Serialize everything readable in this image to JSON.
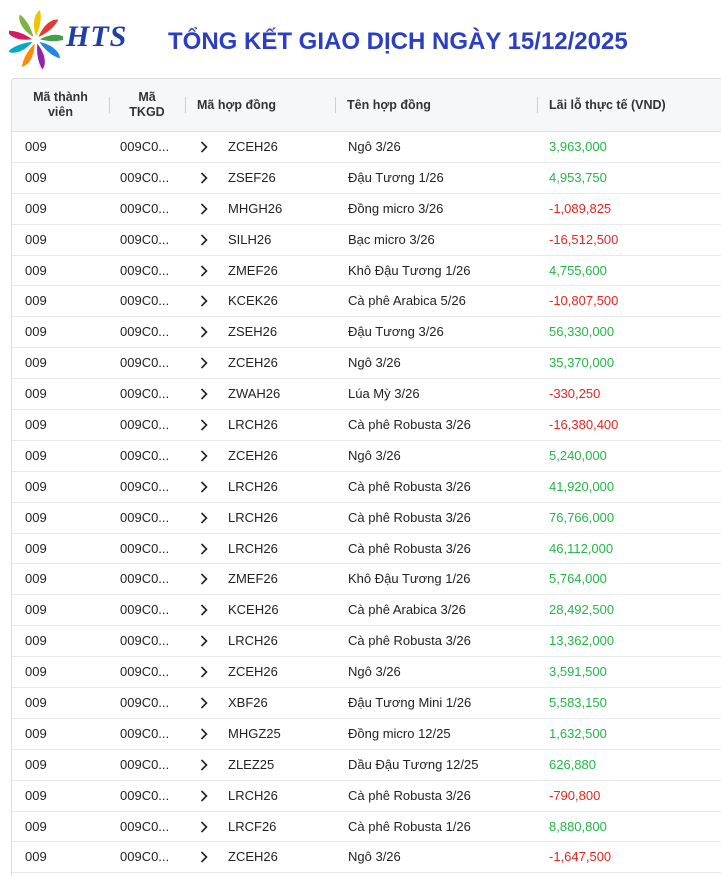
{
  "header": {
    "brand": "HTS",
    "title": "TỔNG KẾT GIAO DỊCH NGÀY 15/12/2025"
  },
  "colors": {
    "positive": "#22b845",
    "negative": "#e8251f",
    "title": "#2b3fc4"
  },
  "table": {
    "columns": {
      "member": "Mã thành viên",
      "account": "Mã TKGD",
      "contract_code": "Mã hợp đồng",
      "contract_name": "Tên hợp đồng",
      "pnl": "Lãi lỗ thực tế (VND)"
    },
    "rows": [
      {
        "member": "009",
        "account": "009C0...",
        "code": "ZCEH26",
        "name": "Ngô 3/26",
        "pnl": "3,963,000",
        "sign": "pos"
      },
      {
        "member": "009",
        "account": "009C0...",
        "code": "ZSEF26",
        "name": "Đậu Tương 1/26",
        "pnl": "4,953,750",
        "sign": "pos"
      },
      {
        "member": "009",
        "account": "009C0...",
        "code": "MHGH26",
        "name": "Đồng micro 3/26",
        "pnl": "-1,089,825",
        "sign": "neg"
      },
      {
        "member": "009",
        "account": "009C0...",
        "code": "SILH26",
        "name": "Bạc micro 3/26",
        "pnl": "-16,512,500",
        "sign": "neg"
      },
      {
        "member": "009",
        "account": "009C0...",
        "code": "ZMEF26",
        "name": "Khô Đậu Tương 1/26",
        "pnl": "4,755,600",
        "sign": "pos"
      },
      {
        "member": "009",
        "account": "009C0...",
        "code": "KCEK26",
        "name": "Cà phê Arabica 5/26",
        "pnl": "-10,807,500",
        "sign": "neg"
      },
      {
        "member": "009",
        "account": "009C0...",
        "code": "ZSEH26",
        "name": "Đậu Tương 3/26",
        "pnl": "56,330,000",
        "sign": "pos"
      },
      {
        "member": "009",
        "account": "009C0...",
        "code": "ZCEH26",
        "name": "Ngô 3/26",
        "pnl": "35,370,000",
        "sign": "pos"
      },
      {
        "member": "009",
        "account": "009C0...",
        "code": "ZWAH26",
        "name": "Lúa Mỳ 3/26",
        "pnl": "-330,250",
        "sign": "neg"
      },
      {
        "member": "009",
        "account": "009C0...",
        "code": "LRCH26",
        "name": "Cà phê Robusta 3/26",
        "pnl": "-16,380,400",
        "sign": "neg"
      },
      {
        "member": "009",
        "account": "009C0...",
        "code": "ZCEH26",
        "name": "Ngô 3/26",
        "pnl": "5,240,000",
        "sign": "pos"
      },
      {
        "member": "009",
        "account": "009C0...",
        "code": "LRCH26",
        "name": "Cà phê Robusta 3/26",
        "pnl": "41,920,000",
        "sign": "pos"
      },
      {
        "member": "009",
        "account": "009C0...",
        "code": "LRCH26",
        "name": "Cà phê Robusta 3/26",
        "pnl": "76,766,000",
        "sign": "pos"
      },
      {
        "member": "009",
        "account": "009C0...",
        "code": "LRCH26",
        "name": "Cà phê Robusta 3/26",
        "pnl": "46,112,000",
        "sign": "pos"
      },
      {
        "member": "009",
        "account": "009C0...",
        "code": "ZMEF26",
        "name": "Khô Đậu Tương 1/26",
        "pnl": "5,764,000",
        "sign": "pos"
      },
      {
        "member": "009",
        "account": "009C0...",
        "code": "KCEH26",
        "name": "Cà phê Arabica 3/26",
        "pnl": "28,492,500",
        "sign": "pos"
      },
      {
        "member": "009",
        "account": "009C0...",
        "code": "LRCH26",
        "name": "Cà phê Robusta 3/26",
        "pnl": "13,362,000",
        "sign": "pos"
      },
      {
        "member": "009",
        "account": "009C0...",
        "code": "ZCEH26",
        "name": "Ngô 3/26",
        "pnl": "3,591,500",
        "sign": "pos"
      },
      {
        "member": "009",
        "account": "009C0...",
        "code": "XBF26",
        "name": "Đậu Tương Mini 1/26",
        "pnl": "5,583,150",
        "sign": "pos"
      },
      {
        "member": "009",
        "account": "009C0...",
        "code": "MHGZ25",
        "name": "Đồng micro 12/25",
        "pnl": "1,632,500",
        "sign": "pos"
      },
      {
        "member": "009",
        "account": "009C0...",
        "code": "ZLEZ25",
        "name": "Dầu Đậu Tương 12/25",
        "pnl": "626,880",
        "sign": "pos"
      },
      {
        "member": "009",
        "account": "009C0...",
        "code": "LRCH26",
        "name": "Cà phê Robusta 3/26",
        "pnl": "-790,800",
        "sign": "neg"
      },
      {
        "member": "009",
        "account": "009C0...",
        "code": "LRCF26",
        "name": "Cà phê Robusta 1/26",
        "pnl": "8,880,800",
        "sign": "pos"
      },
      {
        "member": "009",
        "account": "009C0...",
        "code": "ZCEH26",
        "name": "Ngô 3/26",
        "pnl": "-1,647,500",
        "sign": "neg"
      }
    ]
  }
}
